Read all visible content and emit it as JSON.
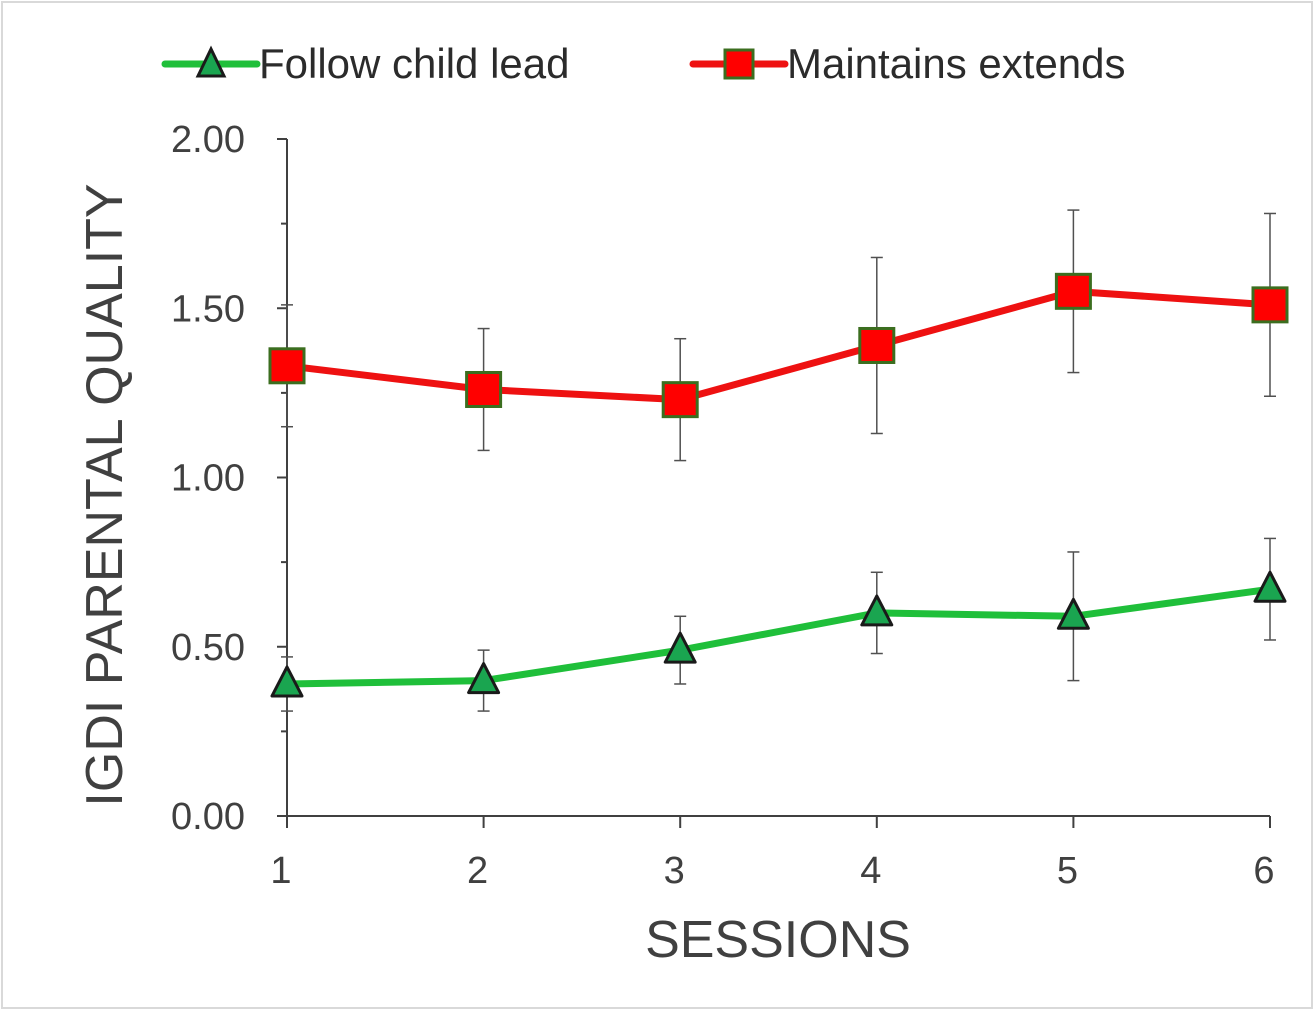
{
  "chart_data": {
    "type": "line",
    "title": "",
    "xlabel": "SESSIONS",
    "ylabel": "IGDI PARENTAL QUALITY",
    "x": [
      1,
      2,
      3,
      4,
      5,
      6
    ],
    "x_tick_labels": [
      "1",
      "2",
      "3",
      "4",
      "5",
      "6"
    ],
    "y_tick_labels": [
      "0.00",
      "0.50",
      "1.00",
      "1.50",
      "2.00"
    ],
    "ylim": [
      0,
      2
    ],
    "y_ticks": [
      0,
      0.5,
      1.0,
      1.5,
      2.0
    ],
    "grid": false,
    "legend_position": "top",
    "series": [
      {
        "name": "Follow child lead",
        "marker": "triangle",
        "line_color": "#1fbf3a",
        "marker_color": "#1aa550",
        "values": [
          0.39,
          0.4,
          0.49,
          0.6,
          0.59,
          0.67
        ],
        "error": [
          0.08,
          0.09,
          0.1,
          0.12,
          0.19,
          0.15
        ]
      },
      {
        "name": "Maintains extends",
        "marker": "square",
        "line_color": "#ee1111",
        "marker_color": "#ff0000",
        "values": [
          1.33,
          1.26,
          1.23,
          1.39,
          1.55,
          1.51
        ],
        "error": [
          0.18,
          0.18,
          0.18,
          0.26,
          0.24,
          0.27
        ]
      }
    ]
  }
}
